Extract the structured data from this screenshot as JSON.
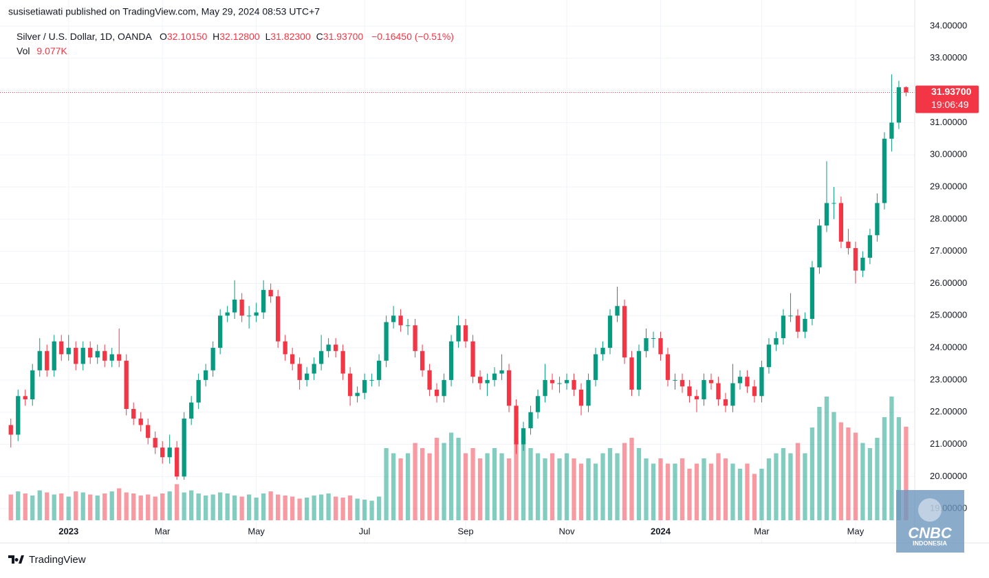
{
  "publisher": "susisetiawati published on TradingView.com, May 29, 2024 08:53 UTC+7",
  "header": {
    "symbol": "Silver / U.S. Dollar, 1D, OANDA",
    "o": "O",
    "open": "32.10150",
    "h": "H",
    "high": "32.12800",
    "l": "L",
    "low": "31.82300",
    "c": "C",
    "close": "31.93700",
    "change": "−0.16450 (−0.51%)",
    "vol": "Vol",
    "volume": "9.077K"
  },
  "price_tag": {
    "price": "31.93700",
    "countdown": "19:06:49"
  },
  "watermark": {
    "line1": "CNBC",
    "line2": "INDONESIA"
  },
  "footer": "TradingView",
  "chart_data": {
    "type": "candlestick",
    "up_color": "#089981",
    "down_color": "#f23645",
    "grid": true,
    "xlim": [
      -1.5,
      125.2
    ],
    "xticks": [
      {
        "value": 8,
        "label": "2023"
      },
      {
        "value": 21,
        "label": "Mar"
      },
      {
        "value": 34,
        "label": "May"
      },
      {
        "value": 49,
        "label": "Jul"
      },
      {
        "value": 63,
        "label": "Sep"
      },
      {
        "value": 77,
        "label": "Nov"
      },
      {
        "value": 90,
        "label": "2024"
      },
      {
        "value": 104,
        "label": "Mar"
      },
      {
        "value": 117,
        "label": "May"
      }
    ],
    "ylim": [
      18.64,
      34.17
    ],
    "yticks": [
      {
        "value": 19,
        "label": "19.00000"
      },
      {
        "value": 20,
        "label": "20.00000"
      },
      {
        "value": 21,
        "label": "21.00000"
      },
      {
        "value": 22,
        "label": "22.00000"
      },
      {
        "value": 23,
        "label": "23.00000"
      },
      {
        "value": 24,
        "label": "24.00000"
      },
      {
        "value": 25,
        "label": "25.00000"
      },
      {
        "value": 26,
        "label": "26.00000"
      },
      {
        "value": 27,
        "label": "27.00000"
      },
      {
        "value": 28,
        "label": "28.00000"
      },
      {
        "value": 29,
        "label": "29.00000"
      },
      {
        "value": 30,
        "label": "30.00000"
      },
      {
        "value": 31,
        "label": "31.00000"
      },
      {
        "value": 32,
        "label": "32.00000"
      },
      {
        "value": 33,
        "label": "33.00000"
      },
      {
        "value": 34,
        "label": "34.00000"
      }
    ],
    "open": [
      21.6,
      21.3,
      22.5,
      22.4,
      23.3,
      23.9,
      23.3,
      24.2,
      23.8,
      24.0,
      23.5,
      24.0,
      23.7,
      23.9,
      23.6,
      23.8,
      23.6,
      22.1,
      21.8,
      21.6,
      21.2,
      20.9,
      20.6,
      20.9,
      20.0,
      21.8,
      22.3,
      23.0,
      23.3,
      24.0,
      25.0,
      25.1,
      25.5,
      25.0,
      25.0,
      25.1,
      25.8,
      25.6,
      24.2,
      23.8,
      23.5,
      23.0,
      23.2,
      23.5,
      23.9,
      24.1,
      23.9,
      23.2,
      22.5,
      22.6,
      23.0,
      23.0,
      23.6,
      24.8,
      25.0,
      24.7,
      24.7,
      23.9,
      23.3,
      22.7,
      22.5,
      23.0,
      24.2,
      24.7,
      24.2,
      23.1,
      22.9,
      23.0,
      23.2,
      23.3,
      22.2,
      21.0,
      21.5,
      22.0,
      22.5,
      23.0,
      22.9,
      22.9,
      23.0,
      22.7,
      22.2,
      23.0,
      23.8,
      24.0,
      25.0,
      25.3,
      23.7,
      22.7,
      23.9,
      24.3,
      24.3,
      23.8,
      23.0,
      23.0,
      22.8,
      22.5,
      22.4,
      23.0,
      22.9,
      22.4,
      22.2,
      22.9,
      23.1,
      22.8,
      22.5,
      23.4,
      24.1,
      24.3,
      25.0,
      25.0,
      24.5,
      24.9,
      26.5,
      27.8,
      28.5,
      28.5,
      27.3,
      27.1,
      26.4,
      26.8,
      27.5,
      28.5,
      30.5,
      31.0,
      32.1015
    ],
    "high": [
      21.8,
      22.7,
      22.7,
      23.5,
      24.3,
      24.1,
      24.4,
      24.4,
      24.4,
      24.2,
      24.2,
      24.2,
      24.1,
      24.1,
      24.0,
      24.6,
      23.8,
      22.3,
      22.0,
      21.8,
      21.4,
      21.1,
      21.3,
      21.1,
      22.0,
      22.5,
      23.2,
      23.5,
      24.2,
      25.2,
      25.3,
      26.1,
      25.7,
      25.3,
      25.4,
      26.1,
      26.0,
      25.8,
      24.4,
      24.0,
      23.7,
      23.4,
      23.7,
      24.4,
      24.3,
      24.3,
      24.1,
      23.4,
      22.8,
      23.2,
      23.2,
      23.8,
      25.0,
      25.3,
      25.2,
      24.9,
      24.9,
      24.1,
      23.5,
      22.9,
      23.2,
      24.4,
      25.0,
      24.9,
      24.4,
      23.3,
      23.2,
      23.4,
      23.8,
      23.5,
      22.4,
      21.7,
      22.2,
      22.7,
      23.5,
      23.2,
      23.1,
      23.2,
      23.2,
      22.9,
      23.2,
      24.0,
      24.2,
      25.2,
      25.9,
      25.5,
      23.9,
      24.1,
      24.6,
      24.5,
      24.5,
      24.0,
      23.2,
      23.2,
      23.0,
      22.7,
      23.2,
      23.2,
      23.1,
      22.6,
      23.5,
      23.3,
      23.3,
      23.0,
      23.6,
      24.3,
      24.5,
      25.2,
      25.7,
      25.2,
      25.1,
      26.7,
      28.0,
      29.8,
      29.0,
      28.7,
      27.7,
      27.3,
      27.0,
      27.7,
      28.8,
      30.7,
      32.5,
      32.3,
      32.128
    ],
    "low": [
      20.9,
      21.1,
      22.2,
      22.2,
      23.1,
      23.1,
      23.1,
      23.6,
      23.6,
      23.3,
      23.3,
      23.5,
      23.5,
      23.4,
      23.4,
      23.4,
      21.9,
      21.6,
      21.4,
      21.0,
      20.7,
      20.4,
      20.4,
      19.9,
      19.9,
      21.6,
      22.1,
      22.8,
      23.1,
      23.8,
      24.8,
      24.9,
      24.8,
      24.6,
      24.8,
      24.9,
      25.4,
      24.0,
      23.6,
      23.3,
      22.7,
      22.8,
      23.0,
      23.3,
      23.7,
      23.7,
      23.0,
      22.2,
      22.3,
      22.4,
      22.8,
      22.8,
      23.4,
      24.6,
      24.5,
      24.4,
      23.7,
      23.1,
      22.5,
      22.3,
      22.3,
      22.8,
      24.0,
      24.0,
      22.9,
      22.7,
      22.5,
      22.8,
      23.0,
      22.0,
      20.7,
      20.8,
      21.3,
      21.8,
      22.3,
      22.7,
      22.6,
      22.7,
      22.5,
      21.9,
      22.0,
      22.8,
      23.6,
      23.8,
      24.8,
      23.5,
      22.5,
      22.5,
      23.7,
      24.0,
      23.6,
      22.8,
      22.7,
      22.6,
      22.3,
      22.0,
      22.2,
      22.7,
      22.2,
      22.0,
      22.0,
      22.7,
      22.6,
      22.3,
      22.3,
      23.2,
      23.9,
      24.1,
      24.8,
      24.3,
      24.3,
      24.7,
      26.3,
      27.6,
      28.0,
      27.1,
      26.9,
      26.0,
      26.2,
      26.6,
      27.3,
      28.3,
      30.1,
      30.8,
      31.823
    ],
    "close": [
      21.3,
      22.5,
      22.4,
      23.3,
      23.9,
      23.3,
      24.2,
      23.8,
      24.0,
      23.5,
      24.0,
      23.7,
      23.9,
      23.6,
      23.8,
      23.6,
      22.1,
      21.8,
      21.6,
      21.2,
      20.9,
      20.6,
      20.9,
      20.0,
      21.8,
      22.3,
      23.0,
      23.3,
      24.0,
      25.0,
      25.1,
      25.5,
      25.0,
      25.0,
      25.1,
      25.8,
      25.6,
      24.2,
      23.8,
      23.5,
      23.0,
      23.2,
      23.5,
      23.9,
      24.1,
      23.9,
      23.2,
      22.5,
      22.6,
      23.0,
      23.0,
      23.6,
      24.8,
      25.0,
      24.7,
      24.7,
      23.9,
      23.3,
      22.7,
      22.5,
      23.0,
      24.2,
      24.7,
      24.2,
      23.1,
      22.9,
      23.0,
      23.2,
      23.3,
      22.2,
      21.0,
      21.5,
      22.0,
      22.5,
      23.0,
      22.9,
      22.9,
      23.0,
      22.7,
      22.2,
      23.0,
      23.8,
      24.0,
      25.0,
      25.3,
      23.7,
      22.7,
      23.9,
      24.3,
      24.3,
      23.8,
      23.0,
      23.0,
      22.8,
      22.5,
      22.4,
      23.0,
      22.9,
      22.4,
      22.2,
      22.9,
      23.1,
      22.8,
      22.5,
      23.4,
      24.1,
      24.3,
      25.0,
      25.0,
      24.5,
      24.9,
      26.5,
      27.8,
      28.5,
      28.5,
      27.3,
      27.1,
      26.4,
      26.8,
      27.5,
      28.5,
      30.5,
      31.0,
      32.1,
      31.937
    ],
    "volume": [
      2500,
      2800,
      2600,
      2400,
      2900,
      2700,
      2500,
      2600,
      2300,
      2800,
      2700,
      2500,
      2400,
      2600,
      2800,
      3100,
      2700,
      2600,
      2400,
      2500,
      2300,
      2600,
      2800,
      3500,
      2700,
      2900,
      2600,
      2400,
      2500,
      2700,
      2600,
      2400,
      2300,
      2500,
      2200,
      2600,
      2800,
      2500,
      2400,
      2300,
      2100,
      2200,
      2400,
      2500,
      2600,
      2300,
      2200,
      2400,
      2100,
      2000,
      1900,
      2300,
      7000,
      6500,
      6000,
      6500,
      7500,
      7000,
      6500,
      8000,
      7500,
      8500,
      8000,
      6500,
      7000,
      6000,
      6500,
      7000,
      6500,
      6000,
      7500,
      8000,
      7000,
      6500,
      6000,
      6500,
      6000,
      6500,
      6000,
      5500,
      6000,
      5500,
      6500,
      7000,
      6500,
      7500,
      8000,
      7000,
      6000,
      5500,
      6000,
      5500,
      5500,
      6000,
      5000,
      5500,
      6000,
      5500,
      6500,
      6000,
      5500,
      5000,
      5500,
      4500,
      5000,
      6000,
      6500,
      7000,
      6500,
      7500,
      6500,
      9000,
      11000,
      12000,
      10500,
      9500,
      9000,
      8500,
      7500,
      7000,
      8000,
      10000,
      12000,
      10000,
      9077
    ]
  }
}
